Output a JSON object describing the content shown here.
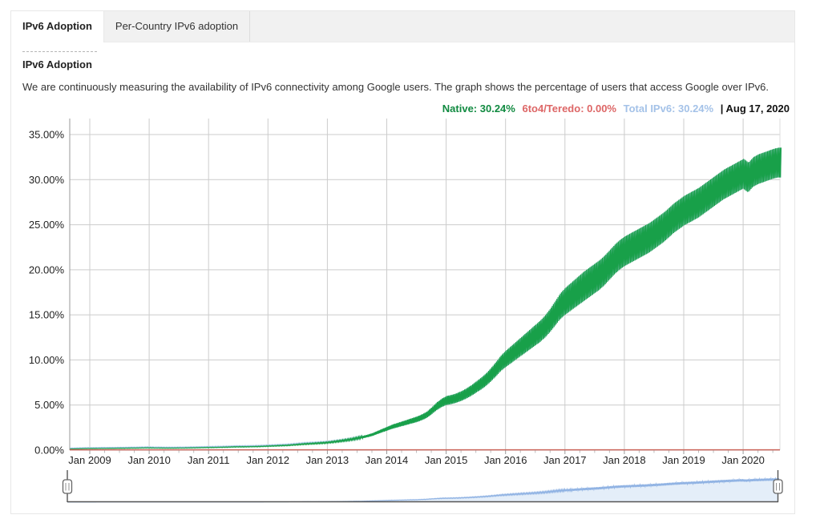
{
  "tabs": [
    {
      "label": "IPv6 Adoption",
      "active": true
    },
    {
      "label": "Per-Country IPv6 adoption",
      "active": false
    }
  ],
  "page": {
    "title": "IPv6 Adoption",
    "description": "We are continuously measuring the availability of IPv6 connectivity among Google users. The graph shows the percentage of users that access Google over IPv6."
  },
  "legend": {
    "native": "Native: 30.24%",
    "tunnel": "6to4/Teredo: 0.00%",
    "total": "Total IPv6: 30.24%",
    "date": "| Aug 17, 2020"
  },
  "colors": {
    "native_line": "#18a049",
    "native_text": "#108a40",
    "tunnel_line": "#cc685e",
    "tunnel_text": "#dd6666",
    "total_line": "#a8c7ea",
    "total_text": "#a4c2e8",
    "grid": "#cccccc",
    "axis": "#999999",
    "tick_minor": "#bbbbbb",
    "label_text": "#222222",
    "slider_line": "#8fb2e3",
    "slider_fill": "#e4eef9",
    "slider_chrome": "#555555",
    "tab_bar_bg": "#f1f1f1"
  },
  "chart_data": {
    "type": "line",
    "title": "IPv6 Adoption",
    "xlabel": "",
    "ylabel": "",
    "grid": true,
    "legend_position": "top-right",
    "ylim": [
      0,
      36.8
    ],
    "y_ticks": [
      "0.00%",
      "5.00%",
      "10.00%",
      "15.00%",
      "20.00%",
      "25.00%",
      "30.00%",
      "35.00%"
    ],
    "y_tick_values": [
      0,
      5,
      10,
      15,
      20,
      25,
      30,
      35
    ],
    "x_ticks": [
      "Jan 2009",
      "Jan 2010",
      "Jan 2011",
      "Jan 2012",
      "Jan 2013",
      "Jan 2014",
      "Jan 2015",
      "Jan 2016",
      "Jan 2017",
      "Jan 2018",
      "Jan 2019",
      "Jan 2020"
    ],
    "first_tick_month_index": 4,
    "months_per_tick": 12,
    "end_month_fraction": 143.55,
    "series": [
      {
        "name": "Native",
        "color": "#18a049",
        "current": "30.24%",
        "weekly_band_fraction": 0.2,
        "weekly_band_max": 3.3,
        "monthly_low_values": [
          0.12,
          0.13,
          0.14,
          0.15,
          0.16,
          0.16,
          0.17,
          0.17,
          0.18,
          0.18,
          0.19,
          0.19,
          0.2,
          0.2,
          0.21,
          0.22,
          0.22,
          0.21,
          0.21,
          0.2,
          0.2,
          0.2,
          0.21,
          0.21,
          0.22,
          0.23,
          0.24,
          0.25,
          0.26,
          0.27,
          0.28,
          0.29,
          0.3,
          0.32,
          0.33,
          0.33,
          0.34,
          0.35,
          0.36,
          0.38,
          0.4,
          0.42,
          0.44,
          0.46,
          0.48,
          0.52,
          0.56,
          0.6,
          0.63,
          0.66,
          0.69,
          0.72,
          0.76,
          0.82,
          0.88,
          0.95,
          1.02,
          1.1,
          1.2,
          1.3,
          1.42,
          1.56,
          1.76,
          1.96,
          2.15,
          2.35,
          2.5,
          2.65,
          2.8,
          2.95,
          3.1,
          3.3,
          3.55,
          3.95,
          4.4,
          4.75,
          5.0,
          5.1,
          5.25,
          5.45,
          5.7,
          6.0,
          6.35,
          6.7,
          7.1,
          7.6,
          8.15,
          8.75,
          9.2,
          9.6,
          10.0,
          10.4,
          10.8,
          11.2,
          11.6,
          12.0,
          12.5,
          13.1,
          13.8,
          14.5,
          15.0,
          15.4,
          15.8,
          16.2,
          16.6,
          17.0,
          17.4,
          17.8,
          18.3,
          18.9,
          19.5,
          20.0,
          20.4,
          20.7,
          21.0,
          21.3,
          21.6,
          21.9,
          22.3,
          22.7,
          23.1,
          23.6,
          24.1,
          24.5,
          24.9,
          25.2,
          25.5,
          25.8,
          26.2,
          26.6,
          27.0,
          27.4,
          27.8,
          28.1,
          28.4,
          28.7,
          29.0,
          28.6,
          29.2,
          29.5,
          29.7,
          29.9,
          30.1,
          30.24
        ]
      },
      {
        "name": "6to4/Teredo",
        "color": "#cc685e",
        "current": "0.00%",
        "constant_value": 0
      },
      {
        "name": "Total IPv6",
        "color": "#a8c7ea",
        "current": "30.24%",
        "early_extra": 0.08,
        "early_extra_end_month": 47,
        "early_extra_fade_month": 60
      }
    ]
  },
  "slider": {
    "kind": "range-filter",
    "selected_range": "full"
  }
}
